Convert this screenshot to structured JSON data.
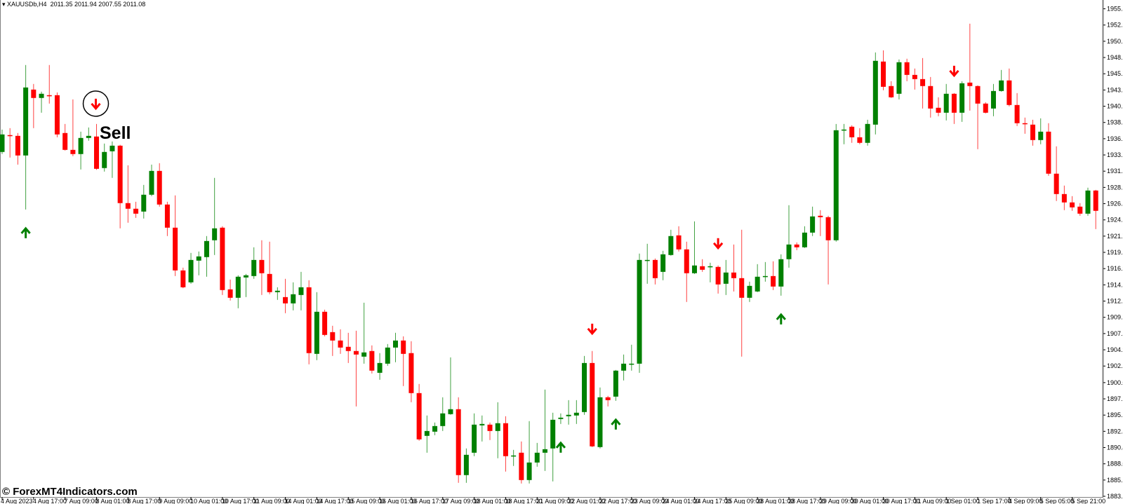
{
  "header": {
    "menu_icon": "triangle-down-icon",
    "symbol": "XAUUSDb,H4",
    "ohlc": "2011.35 2011.94 2007.55 2011.08"
  },
  "watermark": "© ForexMT4Indicators.com",
  "annotation": {
    "label": "Sell",
    "icon": "circled-down-arrow-icon"
  },
  "colors": {
    "bull": "#008000",
    "bear": "#ff0000",
    "buy_arrow": "#008000",
    "sell_arrow": "#ff0000",
    "axis": "#808080"
  },
  "chart_data": {
    "type": "candlestick",
    "title": "",
    "ylim": [
      1883.25,
      1956.6
    ],
    "grid": false,
    "y_ticks": [
      "1955.30",
      "1952.90",
      "1950.50",
      "1948.10",
      "1945.70",
      "1943.30",
      "1940.90",
      "1938.50",
      "1936.10",
      "1933.70",
      "1931.30",
      "1928.90",
      "1926.50",
      "1924.10",
      "1921.70",
      "1919.30",
      "1916.90",
      "1914.50",
      "1912.10",
      "1909.70",
      "1907.30",
      "1904.90",
      "1902.50",
      "1900.05",
      "1897.65",
      "1895.25",
      "1892.85",
      "1890.45",
      "1888.05",
      "1885.65",
      "1883.25"
    ],
    "x_ticks": [
      "4 Aug 2023",
      "4 Aug 17:00",
      "7 Aug 09:00",
      "8 Aug 01:00",
      "8 Aug 17:00",
      "9 Aug 09:00",
      "10 Aug 01:00",
      "10 Aug 17:00",
      "11 Aug 09:00",
      "14 Aug 01:00",
      "14 Aug 17:00",
      "15 Aug 09:00",
      "16 Aug 01:00",
      "16 Aug 17:00",
      "17 Aug 09:00",
      "18 Aug 01:00",
      "18 Aug 17:00",
      "21 Aug 09:00",
      "22 Aug 01:00",
      "22 Aug 17:00",
      "23 Aug 09:00",
      "24 Aug 01:00",
      "24 Aug 17:00",
      "25 Aug 09:00",
      "28 Aug 01:00",
      "28 Aug 17:00",
      "29 Aug 09:00",
      "30 Aug 01:00",
      "30 Aug 17:00",
      "31 Aug 09:00",
      "1 Sep 01:00",
      "1 Sep 17:00",
      "4 Sep 09:00",
      "5 Sep 05:00",
      "5 Sep 21:00"
    ],
    "ohlc_fields": [
      "open",
      "high",
      "low",
      "close"
    ],
    "candles": [
      [
        1934.14,
        1937.45,
        1933.83,
        1936.73
      ],
      [
        1936.63,
        1937.66,
        1933.31,
        1936.52
      ],
      [
        1936.52,
        1936.94,
        1932.27,
        1933.62
      ],
      [
        1933.62,
        1946.99,
        1925.64,
        1943.67
      ],
      [
        1943.36,
        1944.19,
        1937.66,
        1942.12
      ],
      [
        1942.12,
        1943.05,
        1939.94,
        1942.74
      ],
      [
        1942.53,
        1946.99,
        1941.29,
        1942.43
      ],
      [
        1942.53,
        1942.94,
        1936.31,
        1936.73
      ],
      [
        1936.94,
        1938.28,
        1934.35,
        1934.45
      ],
      [
        1934.45,
        1941.91,
        1933.52,
        1933.83
      ],
      [
        1933.83,
        1937.14,
        1931.55,
        1936.21
      ],
      [
        1936.21,
        1937.76,
        1935.8,
        1936.52
      ],
      [
        1936.42,
        1938.28,
        1931.5,
        1931.65
      ],
      [
        1931.76,
        1935.38,
        1931.24,
        1934.14
      ],
      [
        1934.24,
        1935.69,
        1930.31,
        1935.07
      ],
      [
        1935.07,
        1935.2,
        1922.85,
        1926.58
      ],
      [
        1926.58,
        1932.17,
        1923.68,
        1925.75
      ],
      [
        1925.75,
        1926.78,
        1924.4,
        1925.02
      ],
      [
        1925.33,
        1929.27,
        1924.3,
        1927.82
      ],
      [
        1927.82,
        1932.27,
        1927.61,
        1931.34
      ],
      [
        1931.34,
        1932.48,
        1926.06,
        1926.37
      ],
      [
        1926.37,
        1926.78,
        1921.71,
        1922.95
      ],
      [
        1922.95,
        1927.72,
        1915.8,
        1916.63
      ],
      [
        1916.63,
        1917.04,
        1914.0,
        1914.14
      ],
      [
        1914.87,
        1919.22,
        1914.66,
        1918.18
      ],
      [
        1918.08,
        1919.43,
        1915.91,
        1918.7
      ],
      [
        1918.6,
        1921.71,
        1915.7,
        1920.98
      ],
      [
        1921.09,
        1930.31,
        1918.91,
        1922.85
      ],
      [
        1922.95,
        1923.16,
        1913.0,
        1913.73
      ],
      [
        1913.83,
        1915.28,
        1912.18,
        1912.59
      ],
      [
        1912.59,
        1915.91,
        1911.04,
        1915.7
      ],
      [
        1915.59,
        1916.11,
        1912.69,
        1915.91
      ],
      [
        1915.8,
        1920.05,
        1915.39,
        1918.18
      ],
      [
        1918.18,
        1921.09,
        1913.0,
        1916.22
      ],
      [
        1916.11,
        1920.88,
        1913.11,
        1913.42
      ],
      [
        1913.42,
        1914.14,
        1912.28,
        1913.63
      ],
      [
        1912.69,
        1915.39,
        1910.31,
        1911.76
      ],
      [
        1911.76,
        1914.87,
        1910.73,
        1913.11
      ],
      [
        1913.0,
        1916.42,
        1910.73,
        1914.14
      ],
      [
        1914.14,
        1915.18,
        1902.75,
        1904.41
      ],
      [
        1904.3,
        1913.42,
        1903.37,
        1910.52
      ],
      [
        1910.52,
        1910.83,
        1906.89,
        1907.1
      ],
      [
        1907.51,
        1908.45,
        1903.99,
        1906.27
      ],
      [
        1906.27,
        1907.93,
        1904.3,
        1905.23
      ],
      [
        1905.34,
        1907.41,
        1902.95,
        1904.72
      ],
      [
        1904.72,
        1907.72,
        1896.53,
        1904.2
      ],
      [
        1903.89,
        1911.86,
        1902.85,
        1904.51
      ],
      [
        1904.72,
        1905.55,
        1901.4,
        1901.82
      ],
      [
        1901.5,
        1904.41,
        1900.47,
        1902.95
      ],
      [
        1902.85,
        1905.75,
        1902.54,
        1905.23
      ],
      [
        1905.23,
        1907.41,
        1903.06,
        1906.27
      ],
      [
        1906.27,
        1906.89,
        1899.54,
        1904.3
      ],
      [
        1904.41,
        1906.17,
        1897.15,
        1898.5
      ],
      [
        1898.5,
        1899.85,
        1891.46,
        1891.66
      ],
      [
        1892.18,
        1895.19,
        1889.69,
        1892.9
      ],
      [
        1892.8,
        1894.15,
        1892.28,
        1893.63
      ],
      [
        1893.63,
        1897.88,
        1892.9,
        1895.5
      ],
      [
        1895.39,
        1903.78,
        1895.3,
        1896.12
      ],
      [
        1896.12,
        1897.88,
        1885.24,
        1886.38
      ],
      [
        1886.38,
        1890.32,
        1885.24,
        1889.38
      ],
      [
        1889.69,
        1895.5,
        1889.18,
        1893.84
      ],
      [
        1893.73,
        1895.19,
        1891.35,
        1893.94
      ],
      [
        1893.84,
        1894.15,
        1891.56,
        1892.9
      ],
      [
        1892.9,
        1897.15,
        1888.87,
        1894.05
      ],
      [
        1894.05,
        1895.08,
        1886.9,
        1889.18
      ],
      [
        1889.18,
        1890.11,
        1887.73,
        1889.28
      ],
      [
        1889.69,
        1891.35,
        1885.14,
        1885.65
      ],
      [
        1885.65,
        1894.36,
        1885.14,
        1888.24
      ],
      [
        1888.24,
        1891.14,
        1887.62,
        1889.69
      ],
      [
        1889.69,
        1899.02,
        1887.0,
        1890.21
      ],
      [
        1890.32,
        1895.6,
        1885.45,
        1894.56
      ],
      [
        1894.67,
        1895.5,
        1893.94,
        1894.87
      ],
      [
        1895.08,
        1897.46,
        1893.84,
        1895.29
      ],
      [
        1895.19,
        1897.46,
        1893.94,
        1895.6
      ],
      [
        1895.7,
        1903.99,
        1895.29,
        1902.95
      ],
      [
        1902.95,
        1904.72,
        1890.52,
        1890.63
      ],
      [
        1890.52,
        1899.33,
        1890.32,
        1897.88
      ],
      [
        1897.88,
        1898.09,
        1896.53,
        1897.46
      ],
      [
        1897.98,
        1901.92,
        1897.36,
        1901.82
      ],
      [
        1901.82,
        1904.2,
        1900.37,
        1902.85
      ],
      [
        1902.75,
        1905.65,
        1901.82,
        1902.85
      ],
      [
        1902.85,
        1919.12,
        1901.5,
        1918.18
      ],
      [
        1918.08,
        1920.57,
        1914.66,
        1918.18
      ],
      [
        1918.18,
        1918.39,
        1914.56,
        1915.49
      ],
      [
        1916.42,
        1919.53,
        1915.18,
        1919.01
      ],
      [
        1918.91,
        1922.64,
        1918.81,
        1921.71
      ],
      [
        1921.81,
        1923.16,
        1919.43,
        1919.74
      ],
      [
        1919.74,
        1920.88,
        1911.97,
        1916.22
      ],
      [
        1916.22,
        1923.88,
        1916.11,
        1917.36
      ],
      [
        1917.25,
        1918.29,
        1916.42,
        1916.73
      ],
      [
        1917.15,
        1917.77,
        1914.87,
        1917.25
      ],
      [
        1917.15,
        1917.36,
        1913.21,
        1914.56
      ],
      [
        1914.66,
        1918.18,
        1913.0,
        1916.32
      ],
      [
        1916.32,
        1920.46,
        1913.52,
        1915.49
      ],
      [
        1915.49,
        1922.64,
        1903.89,
        1912.59
      ],
      [
        1912.59,
        1914.97,
        1911.97,
        1914.35
      ],
      [
        1913.52,
        1917.56,
        1913.42,
        1915.7
      ],
      [
        1915.7,
        1917.87,
        1914.97,
        1915.8
      ],
      [
        1915.8,
        1917.98,
        1913.73,
        1914.25
      ],
      [
        1914.25,
        1919.01,
        1912.9,
        1918.29
      ],
      [
        1918.29,
        1926.27,
        1917.04,
        1920.46
      ],
      [
        1920.46,
        1920.77,
        1919.63,
        1920.05
      ],
      [
        1920.05,
        1923.16,
        1919.95,
        1922.22
      ],
      [
        1922.22,
        1926.06,
        1921.71,
        1924.61
      ],
      [
        1924.71,
        1925.54,
        1921.71,
        1924.5
      ],
      [
        1924.5,
        1924.71,
        1914.56,
        1921.09
      ],
      [
        1921.09,
        1938.28,
        1920.88,
        1937.35
      ],
      [
        1937.35,
        1938.28,
        1935.28,
        1937.45
      ],
      [
        1937.87,
        1938.08,
        1935.49,
        1936.31
      ],
      [
        1936.31,
        1937.66,
        1935.28,
        1935.49
      ],
      [
        1935.49,
        1938.9,
        1935.07,
        1938.28
      ],
      [
        1938.18,
        1948.85,
        1936.73,
        1947.61
      ],
      [
        1947.5,
        1949.16,
        1943.26,
        1943.77
      ],
      [
        1943.88,
        1944.6,
        1942.12,
        1942.22
      ],
      [
        1942.74,
        1947.81,
        1941.91,
        1947.4
      ],
      [
        1947.4,
        1947.92,
        1944.6,
        1945.53
      ],
      [
        1945.53,
        1946.47,
        1943.36,
        1944.91
      ],
      [
        1944.91,
        1948.02,
        1940.56,
        1943.88
      ],
      [
        1943.88,
        1945.22,
        1939.22,
        1940.56
      ],
      [
        1940.67,
        1942.22,
        1939.42,
        1939.94
      ],
      [
        1939.94,
        1944.19,
        1938.8,
        1942.74
      ],
      [
        1942.74,
        1942.84,
        1938.28,
        1939.94
      ],
      [
        1939.94,
        1944.6,
        1938.59,
        1944.29
      ],
      [
        1944.39,
        1953.1,
        1940.25,
        1943.88
      ],
      [
        1943.88,
        1943.98,
        1934.55,
        1941.29
      ],
      [
        1941.29,
        1941.49,
        1939.84,
        1939.94
      ],
      [
        1940.56,
        1944.19,
        1939.42,
        1943.15
      ],
      [
        1943.15,
        1946.26,
        1943.05,
        1944.71
      ],
      [
        1944.71,
        1946.47,
        1940.87,
        1941.08
      ],
      [
        1941.08,
        1942.84,
        1937.97,
        1938.39
      ],
      [
        1938.39,
        1939.22,
        1936.83,
        1938.28
      ],
      [
        1938.18,
        1938.9,
        1935.07,
        1935.9
      ],
      [
        1935.9,
        1939.11,
        1935.28,
        1937.14
      ],
      [
        1937.14,
        1938.39,
        1930.62,
        1930.93
      ],
      [
        1930.93,
        1934.97,
        1926.89,
        1927.92
      ],
      [
        1927.92,
        1929.17,
        1925.54,
        1926.68
      ],
      [
        1926.68,
        1927.61,
        1925.44,
        1925.95
      ],
      [
        1926.06,
        1926.58,
        1924.71,
        1925.02
      ],
      [
        1925.02,
        1928.86,
        1924.71,
        1928.44
      ],
      [
        1928.44,
        1928.54,
        1922.74,
        1925.44
      ]
    ],
    "signals": [
      {
        "bar": 3,
        "type": "buy"
      },
      {
        "bar": 12,
        "type": "sell-circled"
      },
      {
        "bar": 71,
        "type": "buy"
      },
      {
        "bar": 75,
        "type": "sell"
      },
      {
        "bar": 78,
        "type": "buy"
      },
      {
        "bar": 91,
        "type": "sell"
      },
      {
        "bar": 99,
        "type": "buy"
      },
      {
        "bar": 121,
        "type": "sell"
      }
    ]
  }
}
